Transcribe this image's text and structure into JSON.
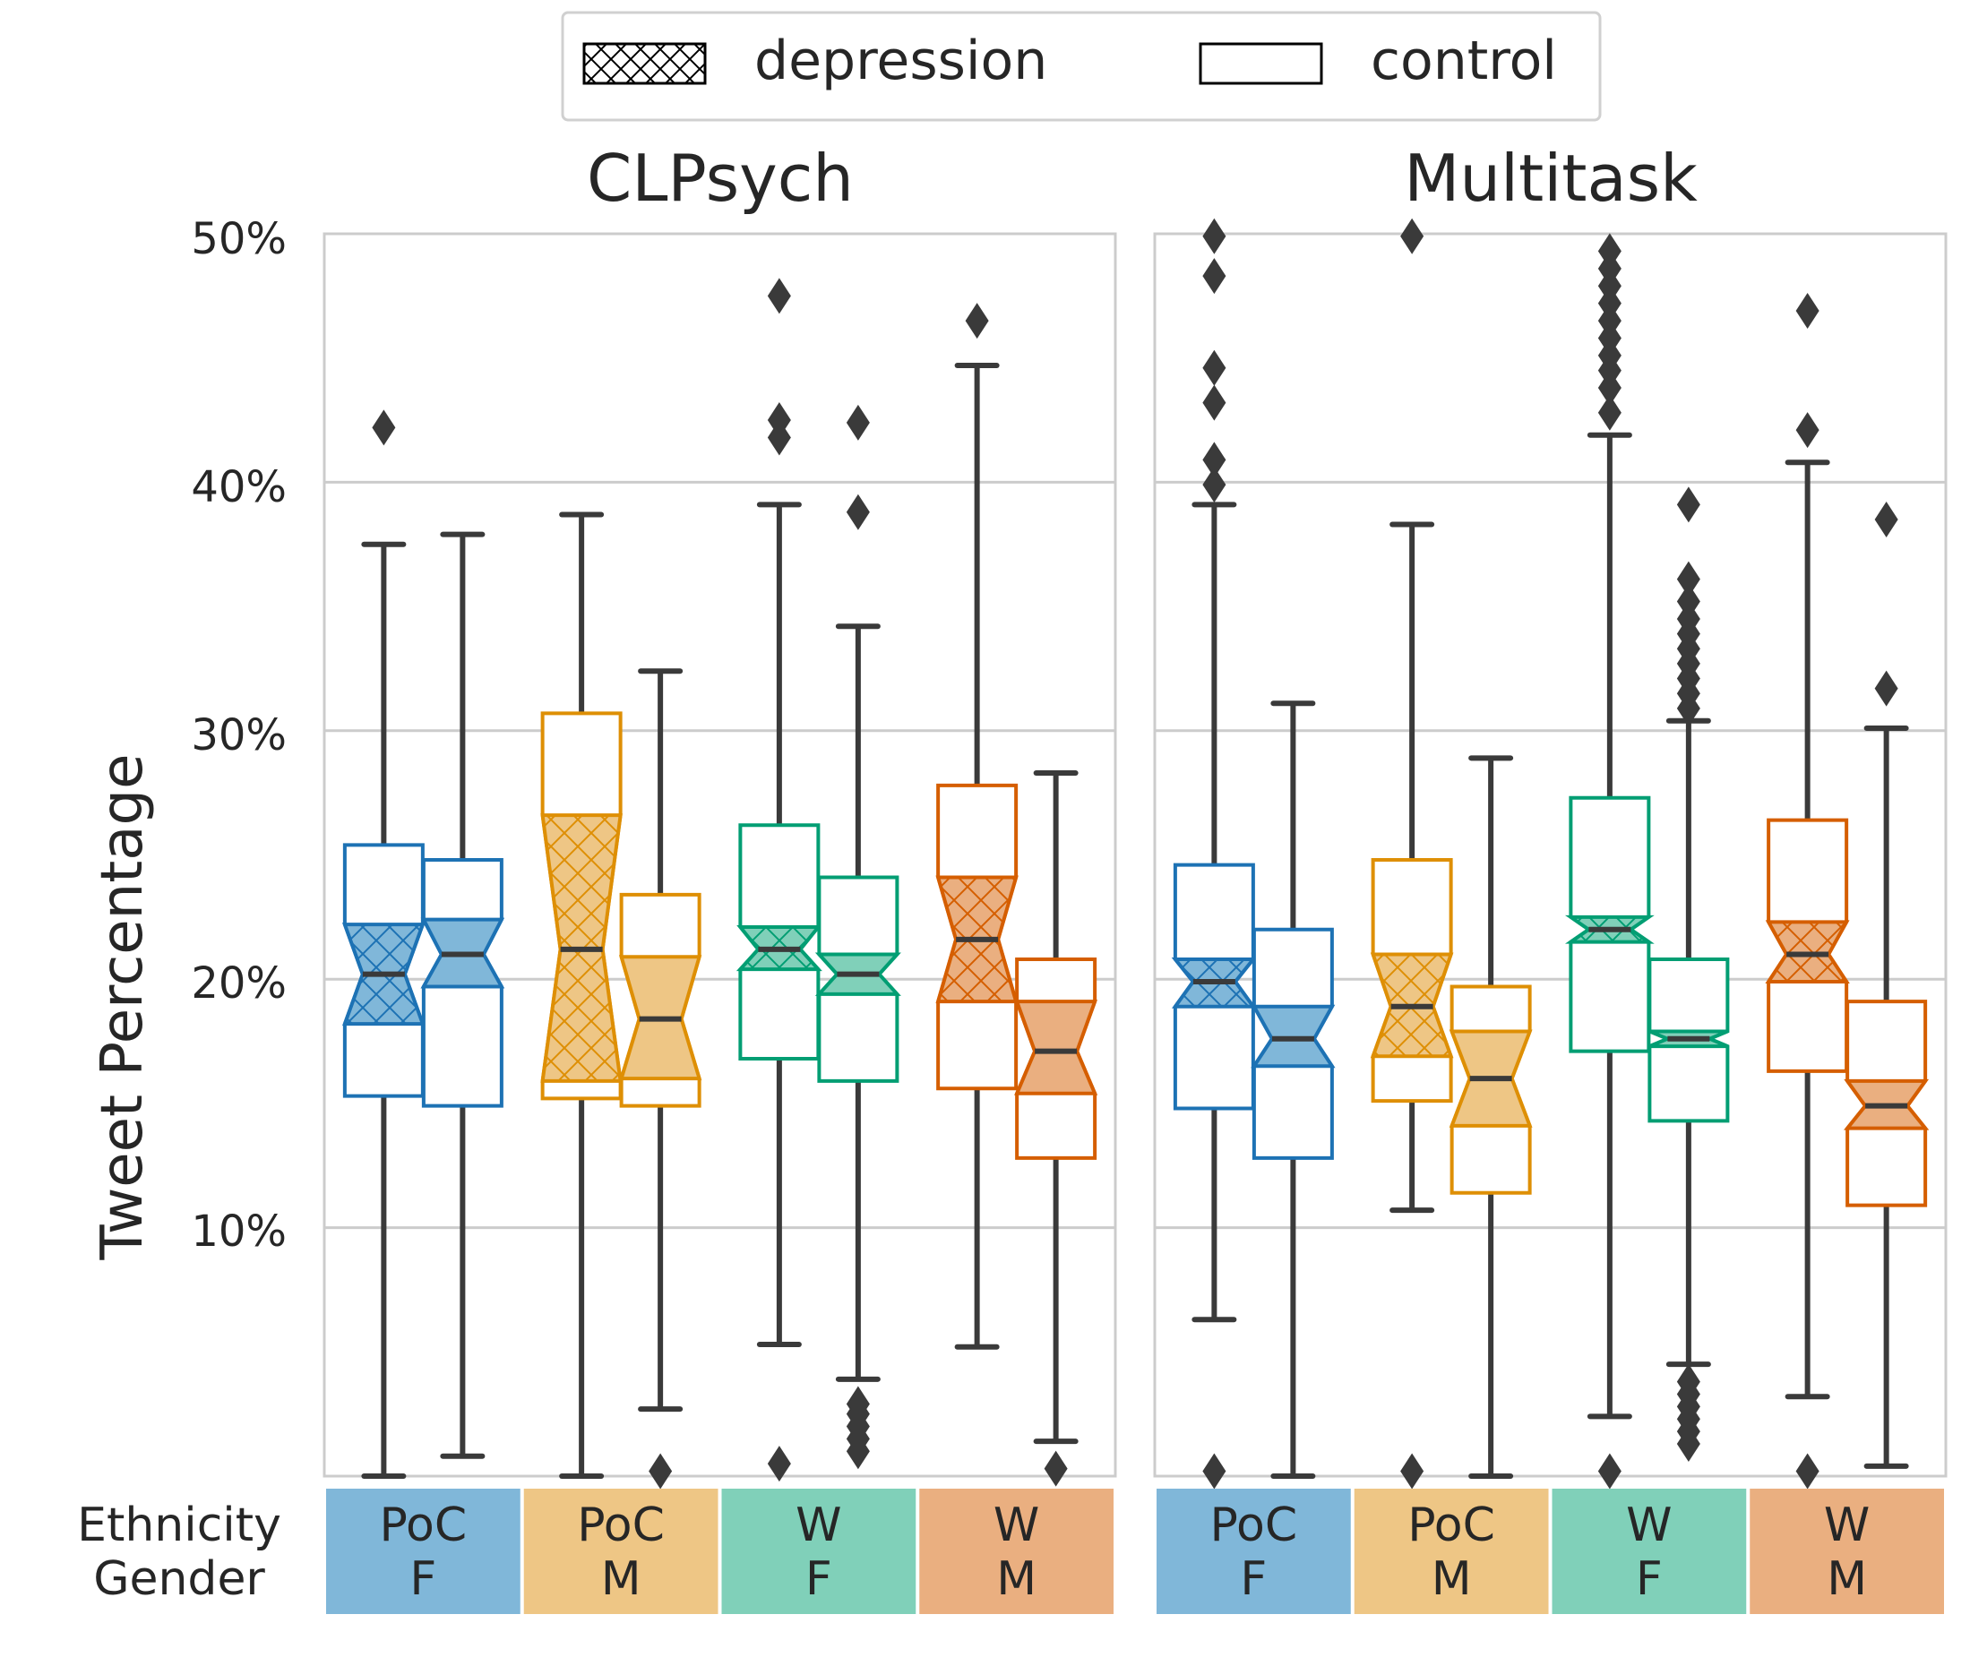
{
  "chart_data": [
    {
      "type": "box",
      "title": "CLPsych",
      "ylabel": "Tweet Percentage",
      "ylim": [
        0,
        50
      ],
      "yticks": [
        10,
        20,
        30,
        40,
        50
      ],
      "ytick_labels": [
        "10%",
        "20%",
        "30%",
        "40%",
        "50%"
      ],
      "grid": true,
      "categories": [
        {
          "ethnicity": "PoC",
          "gender": "F"
        },
        {
          "ethnicity": "PoC",
          "gender": "M"
        },
        {
          "ethnicity": "W",
          "gender": "F"
        },
        {
          "ethnicity": "W",
          "gender": "M"
        }
      ],
      "series": [
        {
          "name": "depression",
          "boxes": [
            {
              "whislo": 0.0,
              "q1": 15.3,
              "notch_lo": 18.2,
              "med": 20.2,
              "notch_hi": 22.2,
              "q3": 25.4,
              "whishi": 37.5,
              "fliers": [
                42.2
              ]
            },
            {
              "whislo": 0.0,
              "q1": 15.2,
              "notch_lo": 15.9,
              "med": 21.2,
              "notch_hi": 26.6,
              "q3": 30.7,
              "whishi": 38.7,
              "fliers": []
            },
            {
              "whislo": 5.3,
              "q1": 16.8,
              "notch_lo": 20.4,
              "med": 21.2,
              "notch_hi": 22.1,
              "q3": 26.2,
              "whishi": 39.1,
              "fliers": [
                0.5,
                41.8,
                42.5,
                47.5
              ]
            },
            {
              "whislo": 5.2,
              "q1": 15.6,
              "notch_lo": 19.1,
              "med": 21.6,
              "notch_hi": 24.1,
              "q3": 27.8,
              "whishi": 44.7,
              "fliers": [
                46.5
              ]
            }
          ]
        },
        {
          "name": "control",
          "boxes": [
            {
              "whislo": 0.8,
              "q1": 14.9,
              "notch_lo": 19.7,
              "med": 21.0,
              "notch_hi": 22.4,
              "q3": 24.8,
              "whishi": 37.9,
              "fliers": []
            },
            {
              "whislo": 2.7,
              "q1": 14.9,
              "notch_lo": 16.0,
              "med": 18.4,
              "notch_hi": 20.9,
              "q3": 23.4,
              "whishi": 32.4,
              "fliers": [
                0.2
              ]
            },
            {
              "whislo": 3.9,
              "q1": 15.9,
              "notch_lo": 19.4,
              "med": 20.2,
              "notch_hi": 21.0,
              "q3": 24.1,
              "whishi": 34.2,
              "fliers": [
                1.0,
                1.5,
                2.0,
                2.5,
                2.9,
                38.8,
                42.4
              ]
            },
            {
              "whislo": 1.4,
              "q1": 12.8,
              "notch_lo": 15.4,
              "med": 17.1,
              "notch_hi": 19.1,
              "q3": 20.8,
              "whishi": 28.3,
              "fliers": [
                0.3
              ]
            }
          ]
        }
      ]
    },
    {
      "type": "box",
      "title": "Multitask",
      "ylim": [
        0,
        50
      ],
      "yticks": [
        10,
        20,
        30,
        40,
        50
      ],
      "grid": true,
      "categories": [
        {
          "ethnicity": "PoC",
          "gender": "F"
        },
        {
          "ethnicity": "PoC",
          "gender": "M"
        },
        {
          "ethnicity": "W",
          "gender": "F"
        },
        {
          "ethnicity": "W",
          "gender": "M"
        }
      ],
      "series": [
        {
          "name": "depression",
          "boxes": [
            {
              "whislo": 6.3,
              "q1": 14.8,
              "notch_lo": 18.9,
              "med": 19.9,
              "notch_hi": 20.8,
              "q3": 24.6,
              "whishi": 39.1,
              "fliers": [
                0.2,
                39.9,
                40.9,
                43.2,
                44.6,
                48.3,
                49.9
              ]
            },
            {
              "whislo": 10.7,
              "q1": 15.1,
              "notch_lo": 16.9,
              "med": 18.9,
              "notch_hi": 21.0,
              "q3": 24.8,
              "whishi": 38.3,
              "fliers": [
                0.2,
                49.9
              ]
            },
            {
              "whislo": 2.4,
              "q1": 17.1,
              "notch_lo": 21.5,
              "med": 22.0,
              "notch_hi": 22.5,
              "q3": 27.3,
              "whishi": 41.9,
              "fliers": [
                0.2,
                42.8,
                43.8,
                44.5,
                45.1,
                45.8,
                46.5,
                47.2,
                47.9,
                48.6,
                49.3
              ]
            },
            {
              "whislo": 3.2,
              "q1": 16.3,
              "notch_lo": 19.9,
              "med": 21.0,
              "notch_hi": 22.3,
              "q3": 26.4,
              "whishi": 40.8,
              "fliers": [
                0.2,
                42.1,
                46.9
              ]
            }
          ]
        },
        {
          "name": "control",
          "boxes": [
            {
              "whislo": 0.0,
              "q1": 12.8,
              "notch_lo": 16.5,
              "med": 17.6,
              "notch_hi": 18.9,
              "q3": 22.0,
              "whishi": 31.1,
              "fliers": []
            },
            {
              "whislo": 0.0,
              "q1": 11.4,
              "notch_lo": 14.1,
              "med": 16.0,
              "notch_hi": 17.9,
              "q3": 19.7,
              "whishi": 28.9,
              "fliers": []
            },
            {
              "whislo": 4.5,
              "q1": 14.3,
              "notch_lo": 17.3,
              "med": 17.6,
              "notch_hi": 17.9,
              "q3": 20.8,
              "whishi": 30.4,
              "fliers": [
                1.3,
                1.8,
                2.3,
                2.8,
                3.3,
                3.8,
                30.9,
                31.5,
                32.1,
                32.7,
                33.3,
                33.9,
                34.5,
                35.2,
                36.1,
                39.1
              ]
            },
            {
              "whislo": 0.4,
              "q1": 10.9,
              "notch_lo": 14.0,
              "med": 14.9,
              "notch_hi": 15.9,
              "q3": 19.1,
              "whishi": 30.1,
              "fliers": [
                31.7,
                38.5
              ]
            }
          ]
        }
      ]
    }
  ],
  "legend": {
    "position": "top-center",
    "items": [
      {
        "label": "depression",
        "pattern": "hatch"
      },
      {
        "label": "control",
        "pattern": "plain"
      }
    ]
  },
  "category_row_labels": {
    "ethnicity": "Ethnicity",
    "gender": "Gender"
  },
  "colors": {
    "PoC F": "#1d72b4",
    "PoC M": "#de8f05",
    "W F": "#029e73",
    "W M": "#d55e00",
    "strip_PoC F": "#80b7d9",
    "strip_PoC M": "#eec685",
    "strip_W F": "#80d0b9",
    "strip_W M": "#eaaf80",
    "whisker": "#3a3a3a",
    "grid": "#cccccc"
  }
}
